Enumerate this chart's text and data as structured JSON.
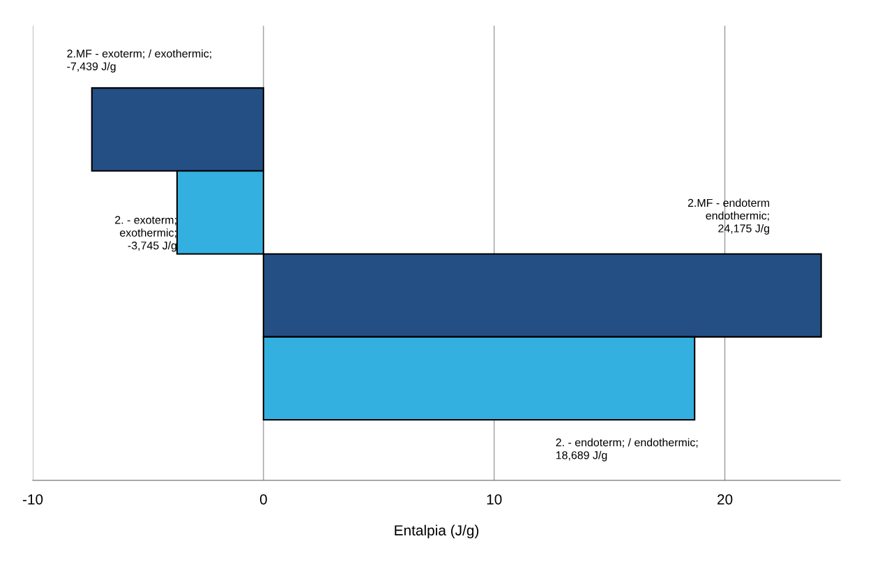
{
  "chart_data": {
    "type": "bar",
    "orientation": "horizontal",
    "xlabel": "Entalpia (J/g)",
    "categories": [
      null,
      null,
      null,
      null
    ],
    "values": [
      -7.439,
      -3.745,
      24.175,
      18.689
    ],
    "colors": [
      "#244f85",
      "#33b0e0",
      "#244f85",
      "#33b0e0"
    ],
    "annotations": [
      "2.MF - exoterm; / exothermic;\n-7,439 J/g",
      "2. - exoterm;\nexothermic;\n-3,745 J/g",
      "2.MF - endoterm\nendothermic;\n24,175 J/g",
      "2. - endoterm; / endothermic;\n18,689 J/g"
    ],
    "xlim": [
      -10,
      25
    ],
    "xticks": [
      -10,
      0,
      10,
      20
    ],
    "grid": "x",
    "tick_labels": "x"
  }
}
